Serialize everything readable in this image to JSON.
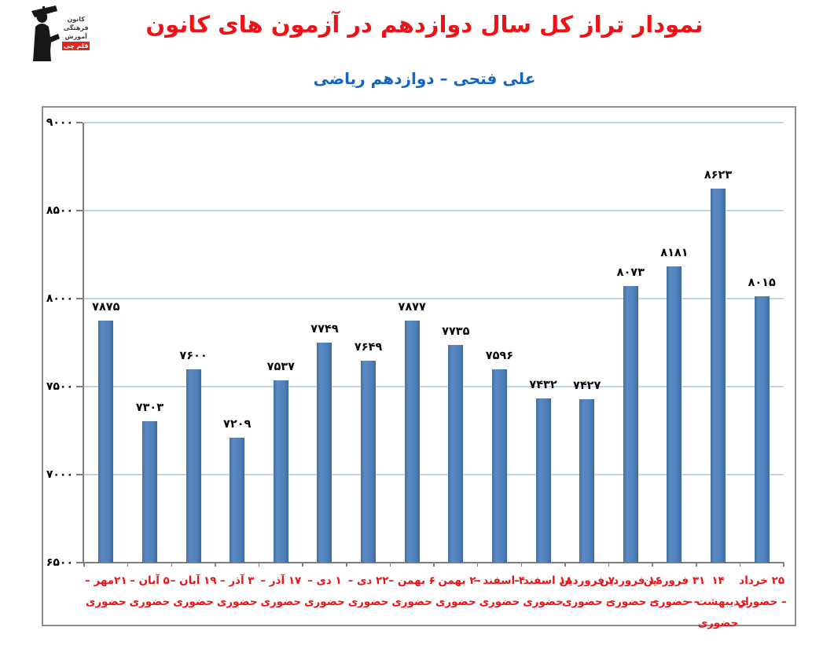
{
  "header": {
    "title": "نمودار تراز کل سال دوازدهم در آزمون های کانون",
    "subtitle": "علی فتحی – دوازدهم ریاضی",
    "logo": {
      "lines": [
        "کانون",
        "فرهنگی",
        "آموزش"
      ],
      "badge": "قلم چی"
    }
  },
  "chart_data": {
    "type": "bar",
    "title": "نمودار تراز کل سال دوازدهم در آزمون های کانون",
    "subtitle": "علی فتحی – دوازدهم ریاضی",
    "xlabel": "",
    "ylabel": "",
    "ylim": [
      6500,
      9000
    ],
    "grid": true,
    "legend_position": "none",
    "bar_color": "#4f81bd",
    "gridline_color": "#c3d3e7",
    "axis_color": "#7f7f7f",
    "category_color": "#ee1217",
    "categories": [
      "۲۱مهر – حضوری",
      "۵ آبان – حضوری",
      "۱۹ آبان – حضوری",
      "۳ آذر – حضوری",
      "۱۷ آذر – حضوری",
      "۱ دی – حضوری",
      "۲۲ دی – حضوری",
      "۶ بهمن – حضوری",
      "۲۰ بهمن – حضوری",
      "۴ اسفند – حضوری",
      "۱۸ اسفند – حضوری",
      "۷ فروردین – حضوری",
      "۱۶ فروردین – حضوری",
      "۳۱ فروردین – حضوری",
      "۱۴ اردیبهشت – حضوری",
      "۲۵ خرداد – حضوری"
    ],
    "category_lines": [
      [
        "۲۱مهر –",
        "حضوری"
      ],
      [
        "۵ آبان –",
        "حضوری"
      ],
      [
        "۱۹ آبان –",
        "حضوری"
      ],
      [
        "۳ آذر –",
        "حضوری"
      ],
      [
        "۱۷ آذر –",
        "حضوری"
      ],
      [
        "۱ دی –",
        "حضوری"
      ],
      [
        "۲۲ دی –",
        "حضوری"
      ],
      [
        "۶ بهمن –",
        "حضوری"
      ],
      [
        "۲۰ بهمن –",
        "حضوری"
      ],
      [
        "۴ اسفند –",
        "حضوری"
      ],
      [
        "۱۸ اسفند –",
        "حضوری"
      ],
      [
        "۷ فروردین",
        "– حضوری"
      ],
      [
        "۱۶ فروردین",
        "– حضوری"
      ],
      [
        "۳۱ فروردین",
        "– حضوری"
      ],
      [
        "۱۴",
        "اردیبهشت –",
        "حضوری"
      ],
      [
        "۲۵ خرداد",
        "– حضوری"
      ]
    ],
    "values": [
      7875,
      7303,
      7600,
      7209,
      7537,
      7749,
      7649,
      7877,
      7735,
      7596,
      7432,
      7427,
      8073,
      8181,
      8623,
      8015
    ],
    "value_labels": [
      "۷۸۷۵",
      "۷۳۰۳",
      "۷۶۰۰",
      "۷۲۰۹",
      "۷۵۳۷",
      "۷۷۴۹",
      "۷۶۴۹",
      "۷۸۷۷",
      "۷۷۳۵",
      "۷۵۹۶",
      "۷۴۳۲",
      "۷۴۲۷",
      "۸۰۷۳",
      "۸۱۸۱",
      "۸۶۲۳",
      "۸۰۱۵"
    ],
    "y_ticks": [
      {
        "value": 6500,
        "label": "۶۵۰۰"
      },
      {
        "value": 7000,
        "label": "۷۰۰۰"
      },
      {
        "value": 7500,
        "label": "۷۵۰۰"
      },
      {
        "value": 8000,
        "label": "۸۰۰۰"
      },
      {
        "value": 8500,
        "label": "۸۵۰۰"
      },
      {
        "value": 9000,
        "label": "۹۰۰۰"
      }
    ]
  }
}
